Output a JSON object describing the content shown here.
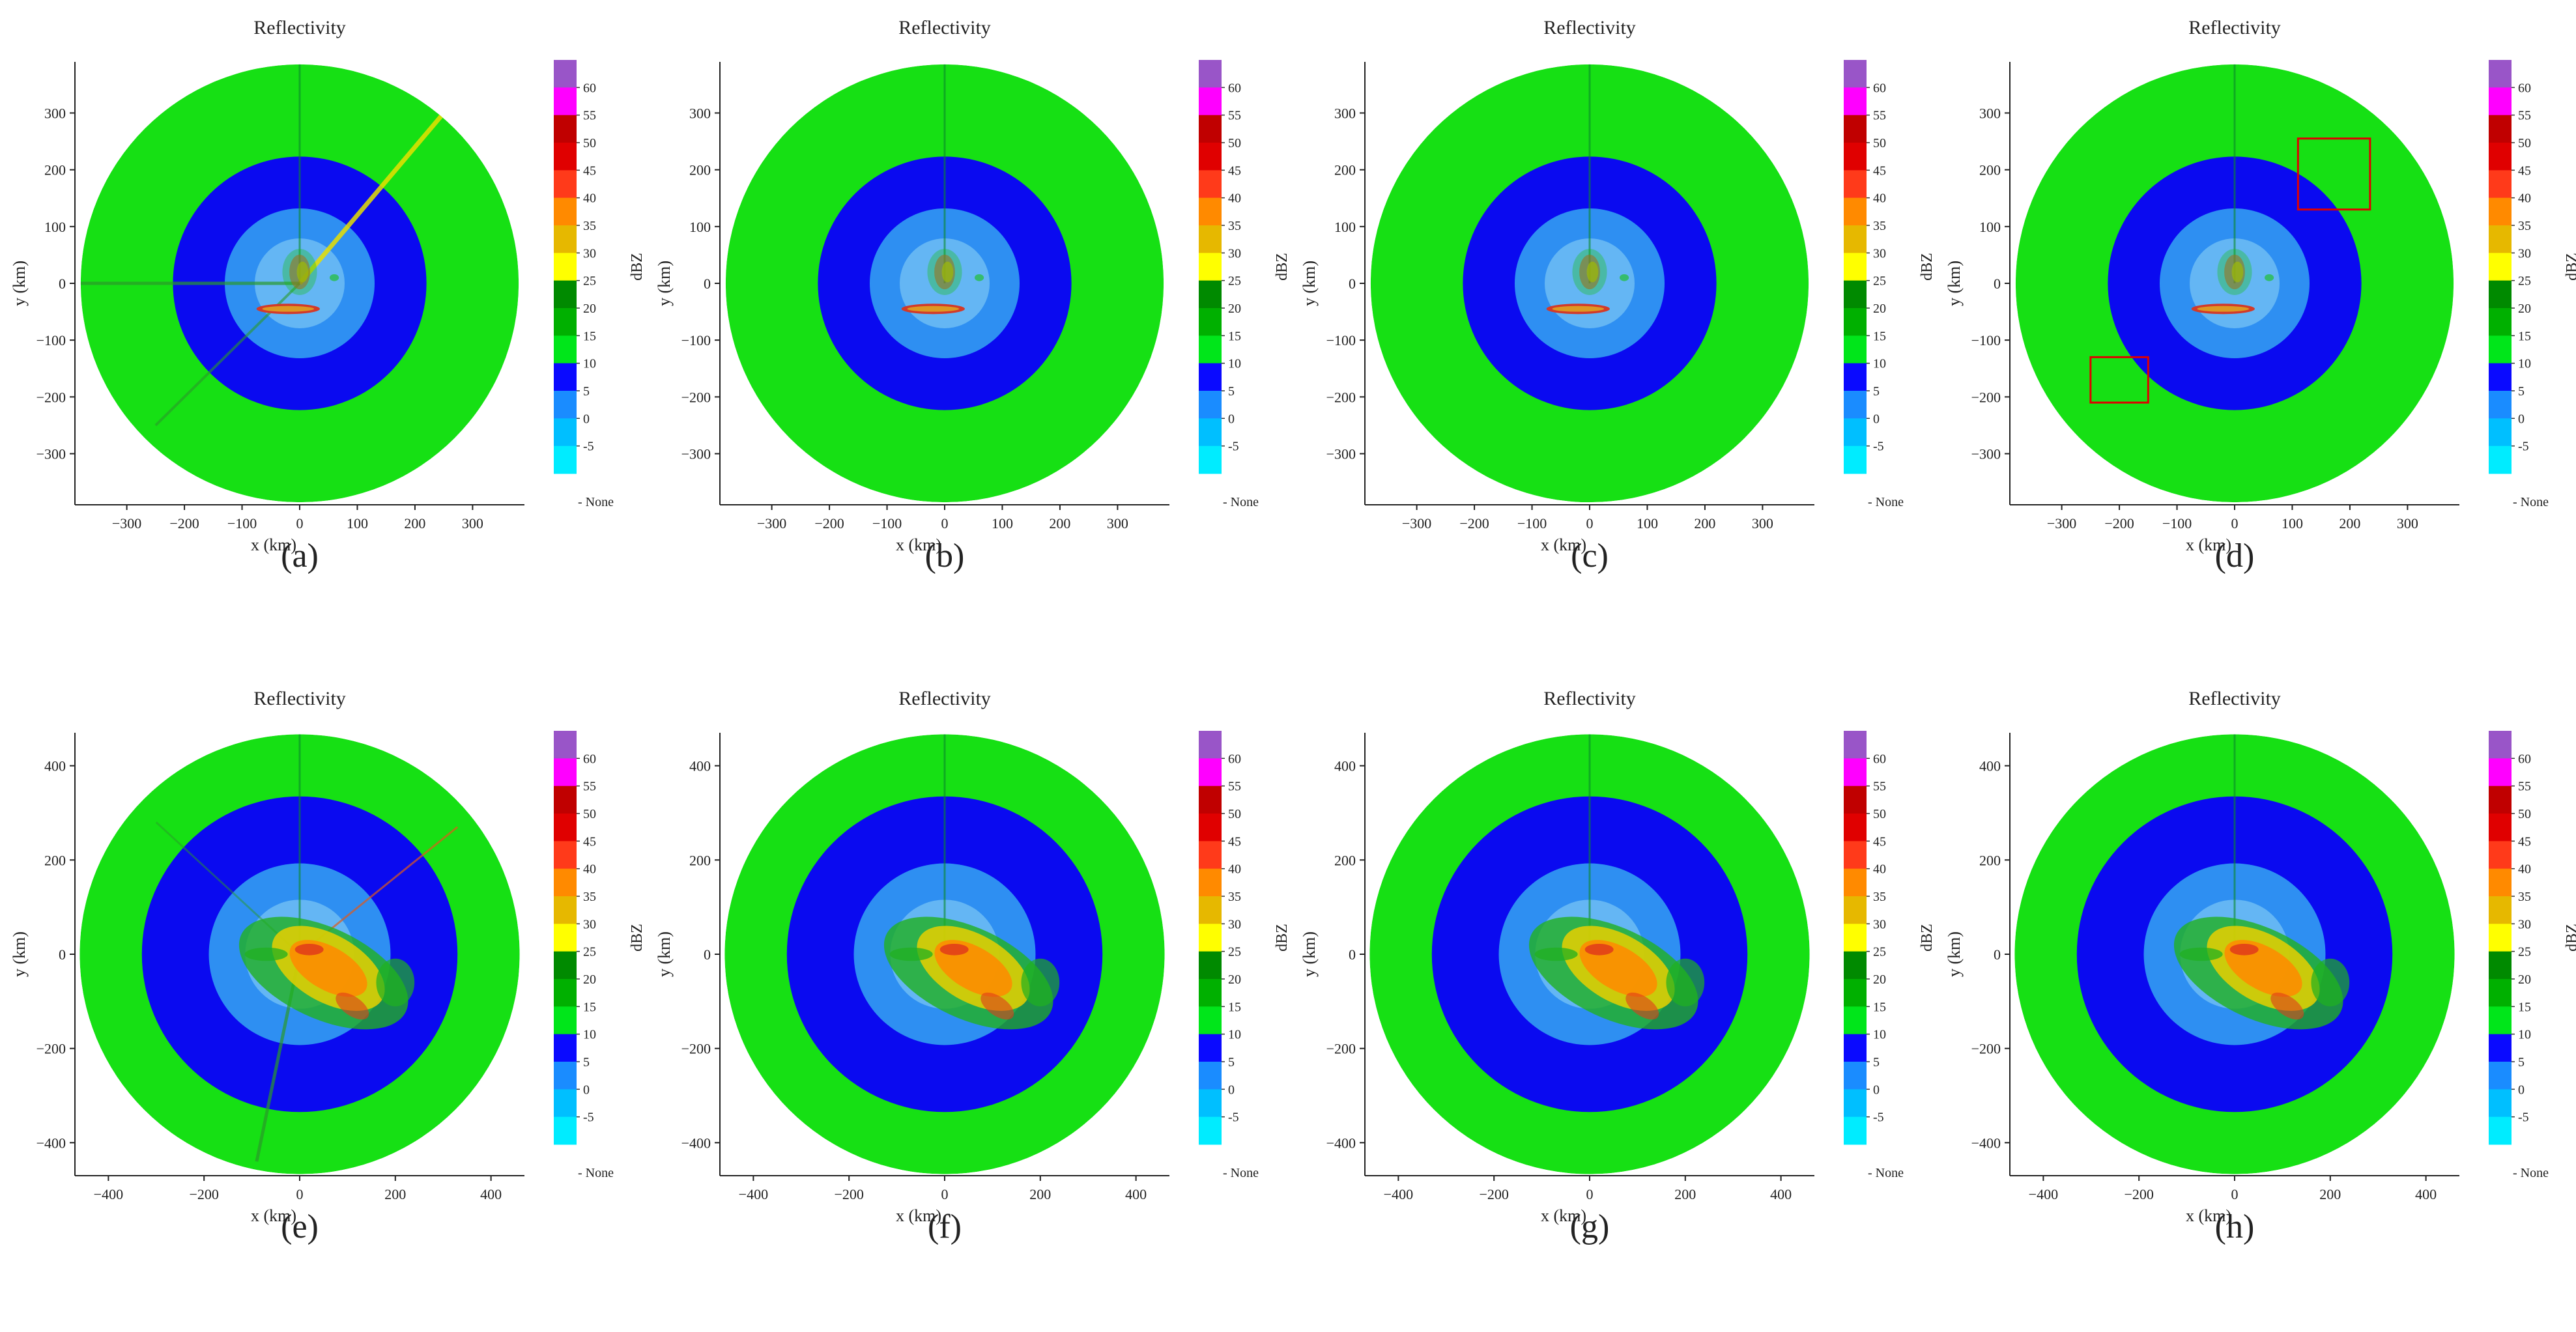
{
  "colorbar": {
    "unit": "dBZ",
    "none_label": "None",
    "levels": [
      {
        "label": "60",
        "color": "#9955c8"
      },
      {
        "label": "55",
        "color": "#ff00ff"
      },
      {
        "label": "50",
        "color": "#c00000"
      },
      {
        "label": "45",
        "color": "#e00000"
      },
      {
        "label": "40",
        "color": "#ff3a1a"
      },
      {
        "label": "35",
        "color": "#ff8a00"
      },
      {
        "label": "30",
        "color": "#e6b800"
      },
      {
        "label": "25",
        "color": "#ffff00"
      },
      {
        "label": "20",
        "color": "#008a00"
      },
      {
        "label": "15",
        "color": "#00b000"
      },
      {
        "label": "10",
        "color": "#00e61a"
      },
      {
        "label": "5",
        "color": "#0a0aff"
      },
      {
        "label": "0",
        "color": "#1a8cff"
      },
      {
        "label": "-5",
        "color": "#00bfff"
      },
      {
        "label": "",
        "color": "#00ecff"
      }
    ]
  },
  "chart_data": [
    {
      "panel": "(a)",
      "type": "heatmap",
      "title": "Reflectivity",
      "xlabel": "x (km)",
      "ylabel": "y (km)",
      "colorbar_label": "dBZ",
      "xlim": [
        -390,
        390
      ],
      "ylim": [
        -390,
        390
      ],
      "xticks": [
        -300,
        -200,
        -100,
        0,
        100,
        200,
        300
      ],
      "yticks": [
        300,
        200,
        100,
        0,
        -100,
        -200,
        -300
      ],
      "radar_range_km": 380,
      "inner_ring_km": 220,
      "core_ring_km": 130,
      "storm_scale": 1,
      "has_spokes": true,
      "boxes": []
    },
    {
      "panel": "(b)",
      "type": "heatmap",
      "title": "Reflectivity",
      "xlabel": "x (km)",
      "ylabel": "y (km)",
      "colorbar_label": "dBZ",
      "xlim": [
        -390,
        390
      ],
      "ylim": [
        -390,
        390
      ],
      "xticks": [
        -300,
        -200,
        -100,
        0,
        100,
        200,
        300
      ],
      "yticks": [
        300,
        200,
        100,
        0,
        -100,
        -200,
        -300
      ],
      "radar_range_km": 380,
      "inner_ring_km": 220,
      "core_ring_km": 130,
      "storm_scale": 1,
      "has_spokes": false,
      "boxes": []
    },
    {
      "panel": "(c)",
      "type": "heatmap",
      "title": "Reflectivity",
      "xlabel": "x (km)",
      "ylabel": "y (km)",
      "colorbar_label": "dBZ",
      "xlim": [
        -390,
        390
      ],
      "ylim": [
        -390,
        390
      ],
      "xticks": [
        -300,
        -200,
        -100,
        0,
        100,
        200,
        300
      ],
      "yticks": [
        300,
        200,
        100,
        0,
        -100,
        -200,
        -300
      ],
      "radar_range_km": 380,
      "inner_ring_km": 220,
      "core_ring_km": 130,
      "storm_scale": 1,
      "has_spokes": false,
      "boxes": []
    },
    {
      "panel": "(d)",
      "type": "heatmap",
      "title": "Reflectivity",
      "xlabel": "x (km)",
      "ylabel": "y (km)",
      "colorbar_label": "dBZ",
      "xlim": [
        -390,
        390
      ],
      "ylim": [
        -390,
        390
      ],
      "xticks": [
        -300,
        -200,
        -100,
        0,
        100,
        200,
        300
      ],
      "yticks": [
        300,
        200,
        100,
        0,
        -100,
        -200,
        -300
      ],
      "radar_range_km": 380,
      "inner_ring_km": 220,
      "core_ring_km": 130,
      "storm_scale": 1,
      "has_spokes": false,
      "boxes": [
        {
          "x0": 110,
          "x1": 235,
          "y0": 130,
          "y1": 255
        },
        {
          "x0": -250,
          "x1": -150,
          "y0": -210,
          "y1": -130
        }
      ]
    },
    {
      "panel": "(e)",
      "type": "heatmap",
      "title": "Reflectivity",
      "xlabel": "x (km)",
      "ylabel": "y (km)",
      "colorbar_label": "dBZ",
      "xlim": [
        -470,
        470
      ],
      "ylim": [
        -470,
        470
      ],
      "xticks": [
        -400,
        -200,
        0,
        200,
        400
      ],
      "yticks": [
        400,
        200,
        0,
        -200,
        -400
      ],
      "radar_range_km": 460,
      "inner_ring_km": 330,
      "core_ring_km": 190,
      "storm_scale": 2,
      "has_spokes": true,
      "boxes": []
    },
    {
      "panel": "(f)",
      "type": "heatmap",
      "title": "Reflectivity",
      "xlabel": "x (km)",
      "ylabel": "y (km)",
      "colorbar_label": "dBZ",
      "xlim": [
        -470,
        470
      ],
      "ylim": [
        -470,
        470
      ],
      "xticks": [
        -400,
        -200,
        0,
        200,
        400
      ],
      "yticks": [
        400,
        200,
        0,
        -200,
        -400
      ],
      "radar_range_km": 460,
      "inner_ring_km": 330,
      "core_ring_km": 190,
      "storm_scale": 2,
      "has_spokes": false,
      "boxes": []
    },
    {
      "panel": "(g)",
      "type": "heatmap",
      "title": "Reflectivity",
      "xlabel": "x (km)",
      "ylabel": "y (km)",
      "colorbar_label": "dBZ",
      "xlim": [
        -470,
        470
      ],
      "ylim": [
        -470,
        470
      ],
      "xticks": [
        -400,
        -200,
        0,
        200,
        400
      ],
      "yticks": [
        400,
        200,
        0,
        -200,
        -400
      ],
      "radar_range_km": 460,
      "inner_ring_km": 330,
      "core_ring_km": 190,
      "storm_scale": 2,
      "has_spokes": false,
      "boxes": []
    },
    {
      "panel": "(h)",
      "type": "heatmap",
      "title": "Reflectivity",
      "xlabel": "x (km)",
      "ylabel": "y (km)",
      "colorbar_label": "dBZ",
      "xlim": [
        -470,
        470
      ],
      "ylim": [
        -470,
        470
      ],
      "xticks": [
        -400,
        -200,
        0,
        200,
        400
      ],
      "yticks": [
        400,
        200,
        0,
        -200,
        -400
      ],
      "radar_range_km": 460,
      "inner_ring_km": 330,
      "core_ring_km": 190,
      "storm_scale": 2,
      "has_spokes": false,
      "boxes": []
    }
  ]
}
